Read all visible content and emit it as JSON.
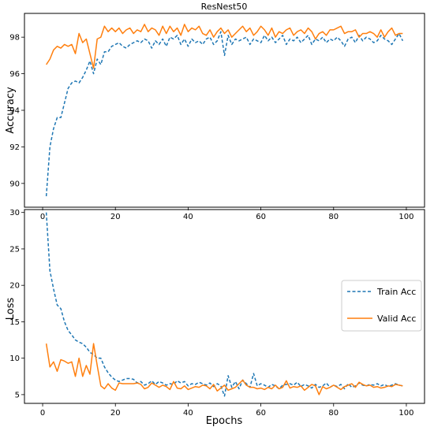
{
  "chart_data": [
    {
      "type": "line",
      "title": "ResNest50",
      "xlabel": "",
      "ylabel": "Accuracy",
      "xlim": [
        -5,
        105
      ],
      "ylim": [
        88.7,
        99.3
      ],
      "xticks": [
        0,
        20,
        40,
        60,
        80,
        100
      ],
      "yticks": [
        90,
        92,
        94,
        96,
        98
      ],
      "grid": false,
      "series": [
        {
          "name": "Train Acc",
          "color": "#1f77b4",
          "dash": "dashed",
          "x": [
            1,
            2,
            3,
            4,
            5,
            6,
            7,
            8,
            9,
            10,
            11,
            12,
            13,
            14,
            15,
            16,
            17,
            18,
            19,
            20,
            21,
            22,
            23,
            24,
            25,
            26,
            27,
            28,
            29,
            30,
            31,
            32,
            33,
            34,
            35,
            36,
            37,
            38,
            39,
            40,
            41,
            42,
            43,
            44,
            45,
            46,
            47,
            48,
            49,
            50,
            51,
            52,
            53,
            54,
            55,
            56,
            57,
            58,
            59,
            60,
            61,
            62,
            63,
            64,
            65,
            66,
            67,
            68,
            69,
            70,
            71,
            72,
            73,
            74,
            75,
            76,
            77,
            78,
            79,
            80,
            81,
            82,
            83,
            84,
            85,
            86,
            87,
            88,
            89,
            90,
            91,
            92,
            93,
            94,
            95,
            96,
            97,
            98,
            99
          ],
          "y": [
            89.3,
            92.0,
            93.0,
            93.6,
            93.6,
            94.4,
            95.2,
            95.5,
            95.6,
            95.5,
            95.8,
            96.2,
            96.7,
            96.0,
            96.8,
            96.5,
            97.2,
            97.2,
            97.5,
            97.6,
            97.7,
            97.5,
            97.4,
            97.6,
            97.7,
            97.8,
            97.7,
            97.9,
            97.8,
            97.4,
            97.8,
            97.6,
            97.9,
            97.5,
            98.0,
            97.9,
            98.1,
            97.6,
            97.9,
            97.5,
            97.9,
            97.7,
            97.8,
            97.6,
            97.9,
            98.0,
            97.6,
            97.8,
            98.3,
            97.0,
            98.1,
            97.6,
            97.9,
            97.8,
            97.9,
            98.0,
            97.6,
            97.9,
            97.8,
            97.7,
            98.1,
            97.8,
            98.0,
            97.7,
            97.9,
            98.1,
            97.6,
            97.9,
            97.8,
            98.0,
            97.7,
            97.9,
            98.1,
            97.6,
            97.9,
            97.8,
            98.0,
            97.7,
            97.9,
            97.8,
            98.0,
            97.8,
            97.5,
            97.9,
            98.0,
            97.7,
            98.1,
            97.8,
            98.0,
            97.9,
            97.7,
            97.8,
            98.1,
            97.9,
            97.8,
            97.6,
            97.9,
            98.2,
            97.8
          ]
        },
        {
          "name": "Valid Acc",
          "color": "#ff7f0e",
          "dash": "solid",
          "x": [
            1,
            2,
            3,
            4,
            5,
            6,
            7,
            8,
            9,
            10,
            11,
            12,
            13,
            14,
            15,
            16,
            17,
            18,
            19,
            20,
            21,
            22,
            23,
            24,
            25,
            26,
            27,
            28,
            29,
            30,
            31,
            32,
            33,
            34,
            35,
            36,
            37,
            38,
            39,
            40,
            41,
            42,
            43,
            44,
            45,
            46,
            47,
            48,
            49,
            50,
            51,
            52,
            53,
            54,
            55,
            56,
            57,
            58,
            59,
            60,
            61,
            62,
            63,
            64,
            65,
            66,
            67,
            68,
            69,
            70,
            71,
            72,
            73,
            74,
            75,
            76,
            77,
            78,
            79,
            80,
            81,
            82,
            83,
            84,
            85,
            86,
            87,
            88,
            89,
            90,
            91,
            92,
            93,
            94,
            95,
            96,
            97,
            98,
            99
          ],
          "y": [
            96.5,
            96.8,
            97.3,
            97.5,
            97.4,
            97.6,
            97.5,
            97.6,
            97.1,
            98.2,
            97.7,
            97.9,
            97.1,
            96.3,
            97.9,
            98.0,
            98.6,
            98.3,
            98.5,
            98.3,
            98.5,
            98.2,
            98.4,
            98.5,
            98.2,
            98.4,
            98.3,
            98.7,
            98.3,
            98.5,
            98.4,
            98.1,
            98.6,
            98.2,
            98.6,
            98.3,
            98.5,
            98.1,
            98.7,
            98.3,
            98.5,
            98.4,
            98.6,
            98.2,
            98.1,
            98.4,
            98.0,
            98.3,
            98.5,
            98.2,
            98.4,
            98.0,
            98.2,
            98.4,
            98.6,
            98.3,
            98.5,
            98.1,
            98.3,
            98.6,
            98.4,
            98.1,
            98.5,
            98.0,
            98.3,
            98.2,
            98.4,
            98.5,
            98.1,
            98.3,
            98.4,
            98.2,
            98.5,
            98.3,
            97.9,
            98.2,
            98.3,
            98.1,
            98.4,
            98.4,
            98.5,
            98.6,
            98.2,
            98.3,
            98.3,
            98.4,
            98.0,
            98.2,
            98.2,
            98.3,
            98.2,
            98.0,
            98.4,
            98.0,
            98.3,
            98.5,
            98.1,
            98.2,
            98.2
          ]
        }
      ]
    },
    {
      "type": "line",
      "title": "",
      "xlabel": "Epochs",
      "ylabel": "Loss",
      "xlim": [
        -5,
        105
      ],
      "ylim": [
        3.8,
        30.4
      ],
      "xticks": [
        0,
        20,
        40,
        60,
        80,
        100
      ],
      "yticks": [
        5,
        10,
        15,
        20,
        25,
        30
      ],
      "grid": false,
      "legend": "center-right",
      "series": [
        {
          "name": "Train Acc",
          "color": "#1f77b4",
          "dash": "dashed",
          "x": [
            1,
            2,
            3,
            4,
            5,
            6,
            7,
            8,
            9,
            10,
            11,
            12,
            13,
            14,
            15,
            16,
            17,
            18,
            19,
            20,
            21,
            22,
            23,
            24,
            25,
            26,
            27,
            28,
            29,
            30,
            31,
            32,
            33,
            34,
            35,
            36,
            37,
            38,
            39,
            40,
            41,
            42,
            43,
            44,
            45,
            46,
            47,
            48,
            49,
            50,
            51,
            52,
            53,
            54,
            55,
            56,
            57,
            58,
            59,
            60,
            61,
            62,
            63,
            64,
            65,
            66,
            67,
            68,
            69,
            70,
            71,
            72,
            73,
            74,
            75,
            76,
            77,
            78,
            79,
            80,
            81,
            82,
            83,
            84,
            85,
            86,
            87,
            88,
            89,
            90,
            91,
            92,
            93,
            94,
            95,
            96,
            97,
            98,
            99
          ],
          "y": [
            30.0,
            22.0,
            19.5,
            17.3,
            16.8,
            15.0,
            13.8,
            13.2,
            12.5,
            12.2,
            12.0,
            11.5,
            10.8,
            10.5,
            10.0,
            10.0,
            8.8,
            8.0,
            7.4,
            7.0,
            6.8,
            7.0,
            7.2,
            7.2,
            7.1,
            6.6,
            6.8,
            6.3,
            6.5,
            6.9,
            6.4,
            6.8,
            6.6,
            6.3,
            6.5,
            6.4,
            6.9,
            6.6,
            6.8,
            6.2,
            6.5,
            6.4,
            6.7,
            6.5,
            6.3,
            6.6,
            6.1,
            6.5,
            6.2,
            4.8,
            7.6,
            6.0,
            6.8,
            5.8,
            7.0,
            6.5,
            6.0,
            7.9,
            6.2,
            6.5,
            6.3,
            6.0,
            6.4,
            6.2,
            5.8,
            6.3,
            6.4,
            6.5,
            6.3,
            6.7,
            6.1,
            6.4,
            6.2,
            5.9,
            6.4,
            6.0,
            6.2,
            6.6,
            6.0,
            6.3,
            6.1,
            6.4,
            5.8,
            6.5,
            6.0,
            6.2,
            6.6,
            6.3,
            6.2,
            6.4,
            6.3,
            6.5,
            6.2,
            6.4,
            6.1,
            6.3,
            6.5,
            6.3,
            6.2
          ]
        },
        {
          "name": "Valid Acc",
          "color": "#ff7f0e",
          "dash": "solid",
          "x": [
            1,
            2,
            3,
            4,
            5,
            6,
            7,
            8,
            9,
            10,
            11,
            12,
            13,
            14,
            15,
            16,
            17,
            18,
            19,
            20,
            21,
            22,
            23,
            24,
            25,
            26,
            27,
            28,
            29,
            30,
            31,
            32,
            33,
            34,
            35,
            36,
            37,
            38,
            39,
            40,
            41,
            42,
            43,
            44,
            45,
            46,
            47,
            48,
            49,
            50,
            51,
            52,
            53,
            54,
            55,
            56,
            57,
            58,
            59,
            60,
            61,
            62,
            63,
            64,
            65,
            66,
            67,
            68,
            69,
            70,
            71,
            72,
            73,
            74,
            75,
            76,
            77,
            78,
            79,
            80,
            81,
            82,
            83,
            84,
            85,
            86,
            87,
            88,
            89,
            90,
            91,
            92,
            93,
            94,
            95,
            96,
            97,
            98,
            99
          ],
          "y": [
            12.0,
            8.8,
            9.5,
            8.2,
            9.8,
            9.6,
            9.3,
            9.5,
            7.5,
            10.0,
            7.5,
            9.0,
            7.8,
            12.0,
            9.0,
            6.2,
            5.8,
            6.5,
            5.9,
            5.6,
            6.6,
            6.5,
            6.5,
            6.5,
            6.5,
            6.6,
            6.4,
            5.8,
            6.0,
            6.6,
            6.3,
            6.0,
            6.3,
            6.1,
            5.7,
            6.8,
            5.9,
            5.8,
            6.2,
            5.7,
            5.9,
            6.1,
            6.0,
            6.3,
            6.2,
            5.8,
            6.4,
            5.5,
            5.9,
            6.3,
            5.6,
            5.8,
            6.0,
            6.5,
            7.0,
            6.3,
            6.0,
            6.0,
            5.8,
            5.9,
            5.7,
            6.0,
            5.8,
            6.3,
            5.8,
            6.0,
            6.9,
            5.9,
            6.1,
            6.0,
            6.2,
            5.6,
            6.0,
            6.4,
            6.2,
            5.0,
            6.1,
            5.8,
            6.0,
            6.3,
            6.0,
            5.7,
            6.1,
            6.3,
            6.5,
            6.0,
            6.7,
            6.4,
            6.2,
            6.3,
            6.0,
            6.1,
            5.9,
            6.0,
            6.2,
            6.1,
            6.4,
            6.3,
            6.2
          ]
        }
      ]
    }
  ]
}
